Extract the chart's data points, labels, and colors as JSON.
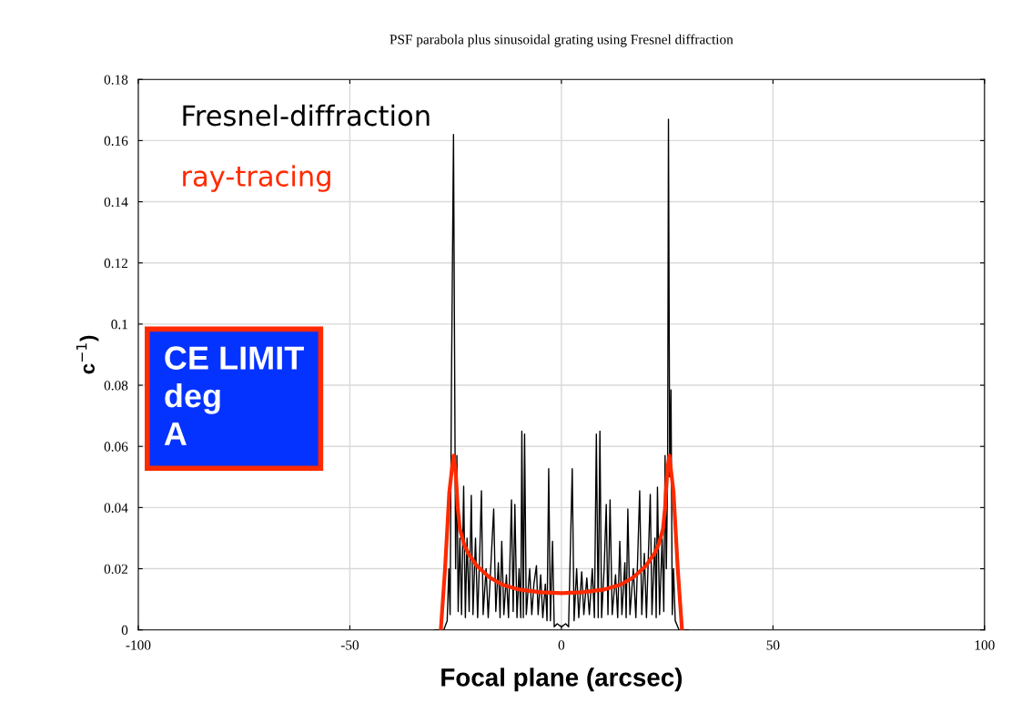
{
  "chart_data": {
    "type": "line",
    "title": "PSF parabola plus sinusoidal grating using Fresnel diffraction",
    "xlabel": "Focal plane (arcsec)",
    "ylabel": "c$^{−1}$)",
    "xlim": [
      -100,
      100
    ],
    "ylim": [
      0,
      0.18
    ],
    "xticks": [
      -100,
      -50,
      0,
      50,
      100
    ],
    "yticks": [
      0,
      0.02,
      0.04,
      0.06,
      0.08,
      0.1,
      0.12,
      0.14,
      0.16,
      0.18
    ],
    "grid": true,
    "legend": "top left",
    "marker": "none",
    "line_style": "solid",
    "annotations": [
      "CE LIMIT",
      "deg",
      "A"
    ],
    "series": [
      {
        "name": "Fresnel-diffraction",
        "color": "#000000",
        "x": [
          -30,
          -27.8,
          -27,
          -26.6,
          -26.3,
          -26,
          -25.5,
          -25,
          -24.7,
          -24.4,
          -24,
          -23.6,
          -23.1,
          -22.7,
          -22.3,
          -21.8,
          -21.3,
          -20.9,
          -20.3,
          -19.8,
          -19.3,
          -18.9,
          -18.5,
          -17.8,
          -17.3,
          -16.0,
          -15.5,
          -14.9,
          -14.5,
          -14.1,
          -13.6,
          -13,
          -12.5,
          -11.8,
          -11.4,
          -11,
          -10.5,
          -10,
          -9.6,
          -9.35,
          -9.0,
          -8.7,
          -8.3,
          -7.5,
          -7,
          -6.5,
          -5.9,
          -5.5,
          -4.9,
          -4.4,
          -3.8,
          -3.4,
          -3.0,
          -2.6,
          -2.1,
          -1.7,
          -1,
          0,
          1,
          1.7,
          2.56,
          3,
          3.6,
          4.1,
          4.8,
          5.3,
          6,
          6.6,
          7.3,
          7.8,
          8.26,
          8.7,
          9.1,
          9.5,
          10.1,
          10.6,
          11,
          11.5,
          12,
          12.8,
          13.3,
          13.8,
          14.3,
          15,
          15.3,
          15.7,
          16.2,
          17,
          17.6,
          18.5,
          19,
          19.6,
          20.1,
          21,
          21.4,
          22.1,
          22.4,
          22.7,
          23.2,
          23.8,
          24.2,
          24.5,
          24.8,
          25.1,
          25.3,
          25.6,
          25.9,
          26.2,
          26.5,
          26.9,
          27.8,
          30
        ],
        "values": [
          0,
          0,
          0.003,
          0.02,
          0.005,
          0.078,
          0.162,
          0.02,
          0.057,
          0.006,
          0.03,
          0.005,
          0.047,
          0.004,
          0.03,
          0.006,
          0.044,
          0.005,
          0.03,
          0.004,
          0.025,
          0.0455,
          0.005,
          0.02,
          0.004,
          0.0395,
          0.006,
          0.022,
          0.004,
          0.029,
          0.005,
          0.018,
          0.004,
          0.0425,
          0.006,
          0.041,
          0.004,
          0.02,
          0.004,
          0.065,
          0.004,
          0.064,
          0.005,
          0.02,
          0.005,
          0.015,
          0.021,
          0.005,
          0.018,
          0.004,
          0.015,
          0.003,
          0.0527,
          0.003,
          0.029,
          0.001,
          0.002,
          0.001,
          0.002,
          0.001,
          0.0527,
          0.003,
          0.02,
          0.004,
          0.019,
          0.005,
          0.017,
          0.005,
          0.02,
          0.004,
          0.064,
          0.004,
          0.065,
          0.004,
          0.02,
          0.041,
          0.005,
          0.0425,
          0.005,
          0.018,
          0.004,
          0.029,
          0.005,
          0.022,
          0.004,
          0.0395,
          0.005,
          0.02,
          0.004,
          0.0455,
          0.005,
          0.025,
          0.004,
          0.0443,
          0.005,
          0.03,
          0.004,
          0.0467,
          0.005,
          0.03,
          0.006,
          0.057,
          0.02,
          0.05,
          0.167,
          0.05,
          0.0785,
          0.005,
          0.02,
          0.003,
          0,
          0
        ]
      },
      {
        "name": "ray-tracing",
        "color": "#ff2a00",
        "x": [
          -28.5,
          -27.5,
          -26.5,
          -25.5,
          -25,
          -24.5,
          -24,
          -23,
          -22,
          -20,
          -17,
          -14,
          -10,
          -5,
          0,
          5,
          10,
          14,
          17,
          20,
          22,
          23,
          24,
          24.5,
          25,
          25.5,
          26.5,
          27.5,
          28.5
        ],
        "values": [
          0,
          0.02,
          0.045,
          0.057,
          0.052,
          0.04,
          0.033,
          0.028,
          0.025,
          0.021,
          0.0172,
          0.0148,
          0.0132,
          0.0123,
          0.012,
          0.0123,
          0.0132,
          0.0148,
          0.0172,
          0.021,
          0.025,
          0.028,
          0.033,
          0.04,
          0.052,
          0.057,
          0.045,
          0.02,
          0
        ]
      }
    ]
  }
}
